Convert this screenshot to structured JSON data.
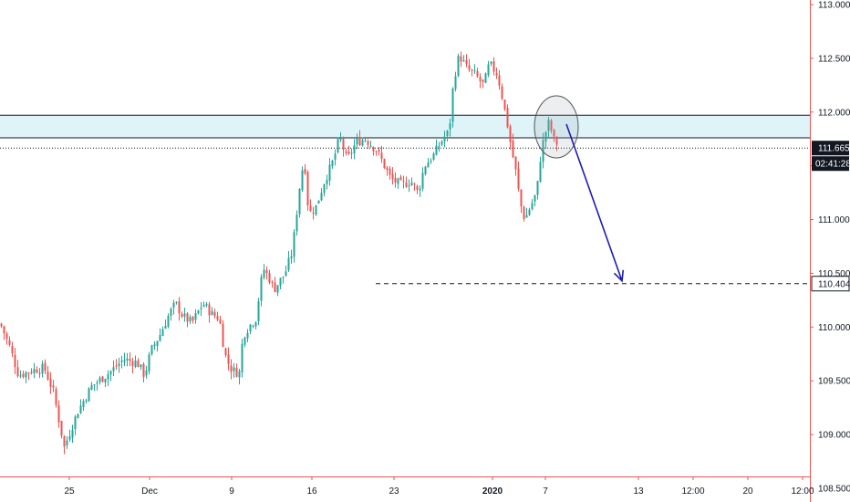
{
  "chart_data": {
    "type": "candlestick",
    "price_axis": {
      "ticks": [
        "113.000",
        "112.500",
        "112.000",
        "111.500",
        "111.000",
        "110.500",
        "110.000",
        "109.500",
        "109.000",
        "108.500"
      ],
      "ylim": [
        108.42,
        113.07
      ]
    },
    "time_axis": {
      "labels": [
        {
          "text": "25",
          "bold": false
        },
        {
          "text": "Dec",
          "bold": false
        },
        {
          "text": "9",
          "bold": false
        },
        {
          "text": "16",
          "bold": false
        },
        {
          "text": "23",
          "bold": false
        },
        {
          "text": "2020",
          "bold": true
        },
        {
          "text": "7",
          "bold": false
        },
        {
          "text": "13",
          "bold": false
        },
        {
          "text": "12:00",
          "bold": false
        },
        {
          "text": "20",
          "bold": false
        },
        {
          "text": "12:00",
          "bold": false
        }
      ]
    },
    "price_path": [
      [
        0,
        110.03
      ],
      [
        10,
        109.82
      ],
      [
        20,
        109.55
      ],
      [
        35,
        109.6
      ],
      [
        48,
        109.62
      ],
      [
        58,
        109.4
      ],
      [
        70,
        108.88
      ],
      [
        85,
        109.22
      ],
      [
        100,
        109.45
      ],
      [
        120,
        109.58
      ],
      [
        135,
        109.7
      ],
      [
        150,
        109.67
      ],
      [
        158,
        109.55
      ],
      [
        165,
        109.78
      ],
      [
        175,
        109.93
      ],
      [
        185,
        110.12
      ],
      [
        192,
        110.22
      ],
      [
        200,
        110.1
      ],
      [
        210,
        110.04
      ],
      [
        222,
        110.22
      ],
      [
        232,
        110.12
      ],
      [
        240,
        110.08
      ],
      [
        246,
        109.75
      ],
      [
        252,
        109.62
      ],
      [
        258,
        109.58
      ],
      [
        262,
        109.58
      ],
      [
        266,
        109.92
      ],
      [
        272,
        110.0
      ],
      [
        280,
        110.08
      ],
      [
        288,
        110.55
      ],
      [
        295,
        110.45
      ],
      [
        300,
        110.35
      ],
      [
        312,
        110.5
      ],
      [
        320,
        110.7
      ],
      [
        328,
        111.3
      ],
      [
        333,
        111.58
      ],
      [
        338,
        111.05
      ],
      [
        346,
        111.12
      ],
      [
        355,
        111.35
      ],
      [
        365,
        111.55
      ],
      [
        372,
        111.77
      ],
      [
        380,
        111.55
      ],
      [
        390,
        111.72
      ],
      [
        400,
        111.75
      ],
      [
        412,
        111.65
      ],
      [
        420,
        111.52
      ],
      [
        428,
        111.38
      ],
      [
        440,
        111.32
      ],
      [
        450,
        111.36
      ],
      [
        458,
        111.25
      ],
      [
        465,
        111.5
      ],
      [
        475,
        111.6
      ],
      [
        485,
        111.75
      ],
      [
        492,
        111.82
      ],
      [
        497,
        112.3
      ],
      [
        503,
        112.53
      ],
      [
        512,
        112.4
      ],
      [
        520,
        112.35
      ],
      [
        530,
        112.25
      ],
      [
        536,
        112.45
      ],
      [
        545,
        112.35
      ],
      [
        550,
        112.15
      ],
      [
        556,
        111.88
      ],
      [
        560,
        111.67
      ],
      [
        565,
        111.45
      ],
      [
        570,
        111.15
      ],
      [
        575,
        111.0
      ],
      [
        580,
        111.1
      ],
      [
        588,
        111.25
      ],
      [
        593,
        111.65
      ],
      [
        598,
        111.82
      ],
      [
        602,
        111.92
      ],
      [
        606,
        111.75
      ],
      [
        611,
        111.7
      ]
    ],
    "zone": {
      "top": 111.97,
      "bottom": 111.76
    },
    "lines": {
      "resistance": 111.97,
      "support": 111.76
    },
    "current_price": "111.665",
    "countdown": "02:41:28",
    "target_level": "110.404",
    "colors": {
      "up": "#26a69a",
      "down": "#ef5350",
      "zone": "#dff4f8",
      "arrow": "#1b1bb5",
      "badge": "#131722",
      "axis": "#ef5350",
      "circle": "#9aa0a6"
    }
  }
}
